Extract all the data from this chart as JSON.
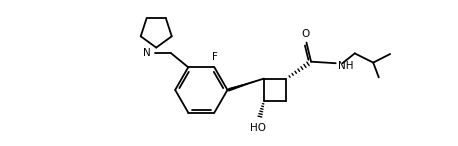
{
  "figure_width": 4.58,
  "figure_height": 1.46,
  "dpi": 100,
  "bg_color": "#ffffff",
  "line_color": "#000000",
  "line_width": 1.3,
  "label_F": "F",
  "label_N": "N",
  "label_O": "O",
  "label_HO": "HO",
  "label_NH": "NH",
  "label_H": "H"
}
